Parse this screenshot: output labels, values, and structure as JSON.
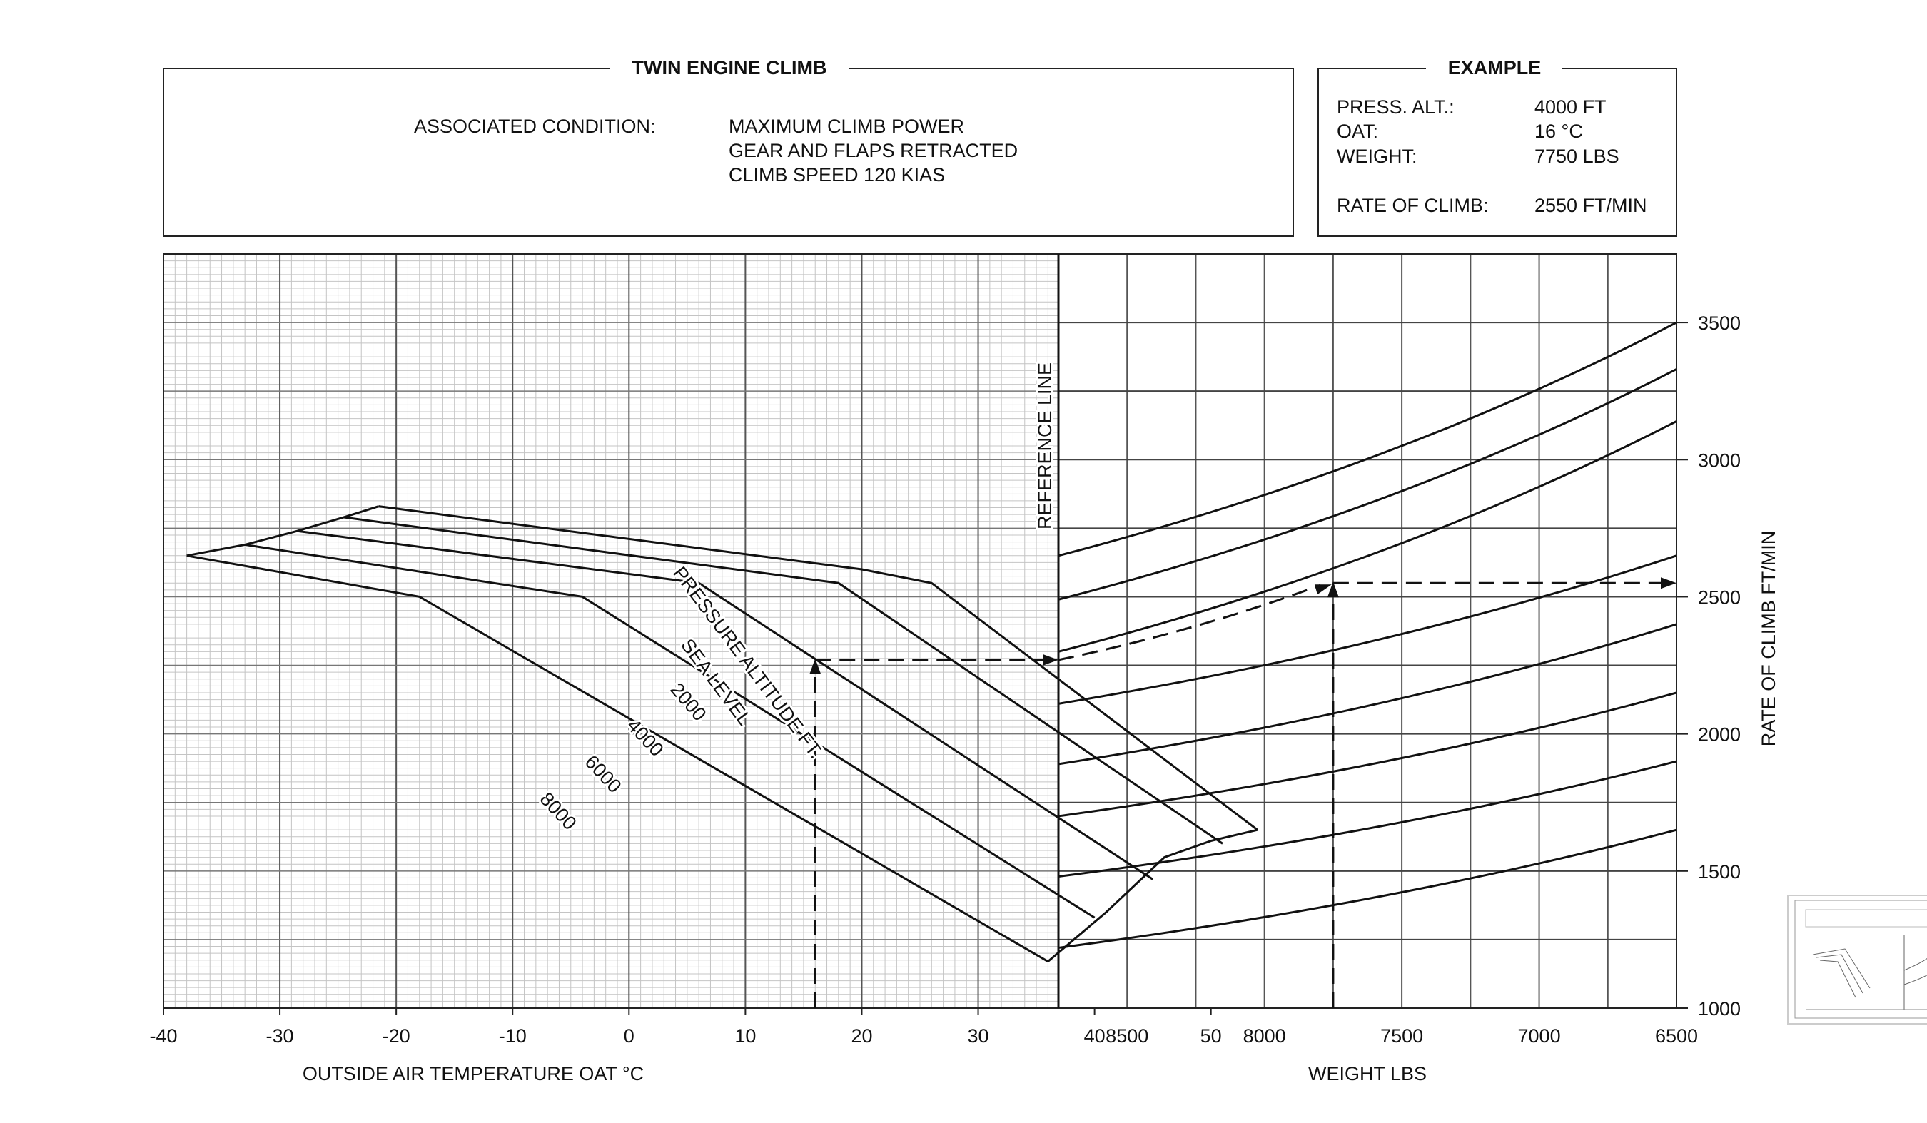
{
  "header": {
    "title": "TWIN ENGINE CLIMB",
    "condition_label": "ASSOCIATED CONDITION:",
    "conditions": [
      "MAXIMUM CLIMB POWER",
      "GEAR AND FLAPS RETRACTED",
      "CLIMB SPEED 120 KIAS"
    ]
  },
  "example": {
    "title": "EXAMPLE",
    "rows": [
      {
        "label": "PRESS. ALT.:",
        "value": "4000 FT"
      },
      {
        "label": "OAT:",
        "value": "16 °C"
      },
      {
        "label": "WEIGHT:",
        "value": "7750 LBS"
      },
      {
        "label": "RATE OF CLIMB:",
        "value": "2550 FT/MIN"
      }
    ]
  },
  "chart_data": {
    "type": "line",
    "left_panel": {
      "xlabel": "OUTSIDE AIR TEMPERATURE OAT °C",
      "xlim": [
        -40,
        90
      ],
      "xticks": [
        -40,
        -30,
        -20,
        -10,
        0,
        10,
        20,
        30,
        40,
        50
      ],
      "curves_label": "PRESSURE ALTITUDE FT.",
      "series": [
        {
          "name": "SEA LEVEL",
          "points": [
            [
              -21.5,
              2830
            ],
            [
              20,
              2600
            ],
            [
              26,
              2550
            ],
            [
              54,
              1650
            ]
          ]
        },
        {
          "name": "2000",
          "points": [
            [
              -24.5,
              2790
            ],
            [
              18,
              2550
            ],
            [
              51,
              1600
            ]
          ]
        },
        {
          "name": "4000",
          "points": [
            [
              -28.5,
              2740
            ],
            [
              6,
              2550
            ],
            [
              45,
              1470
            ]
          ]
        },
        {
          "name": "6000",
          "points": [
            [
              -33,
              2690
            ],
            [
              -4,
              2500
            ],
            [
              40,
              1330
            ]
          ]
        },
        {
          "name": "8000",
          "points": [
            [
              -38,
              2650
            ],
            [
              -18,
              2500
            ],
            [
              36,
              1170
            ]
          ]
        }
      ],
      "envelope_edge": [
        [
          54,
          1650
        ],
        [
          50,
          1610
        ],
        [
          46,
          1550
        ],
        [
          41,
          1350
        ],
        [
          36,
          1170
        ]
      ]
    },
    "reference_line_label": "REFERENCE LINE",
    "right_panel": {
      "xlabel": "WEIGHT LBS",
      "xticks": [
        8500,
        8000,
        7500,
        7000,
        6500
      ],
      "xlim": [
        8750,
        6500
      ],
      "guide_curves": [
        [
          2650,
          3500
        ],
        [
          2490,
          3330
        ],
        [
          2300,
          3140
        ],
        [
          2110,
          2650
        ],
        [
          1890,
          2400
        ],
        [
          1700,
          2150
        ],
        [
          1480,
          1900
        ],
        [
          1220,
          1650
        ]
      ]
    },
    "ylabel": "RATE OF CLIMB FT/MIN",
    "ylim": [
      1000,
      3750
    ],
    "yticks": [
      1000,
      1500,
      2000,
      2500,
      3000,
      3500
    ],
    "example_path": {
      "oat": 16,
      "pressure_alt": 4000,
      "weight": 7750,
      "ref_value": 2270,
      "rate_of_climb": 2550
    },
    "grid": true
  }
}
